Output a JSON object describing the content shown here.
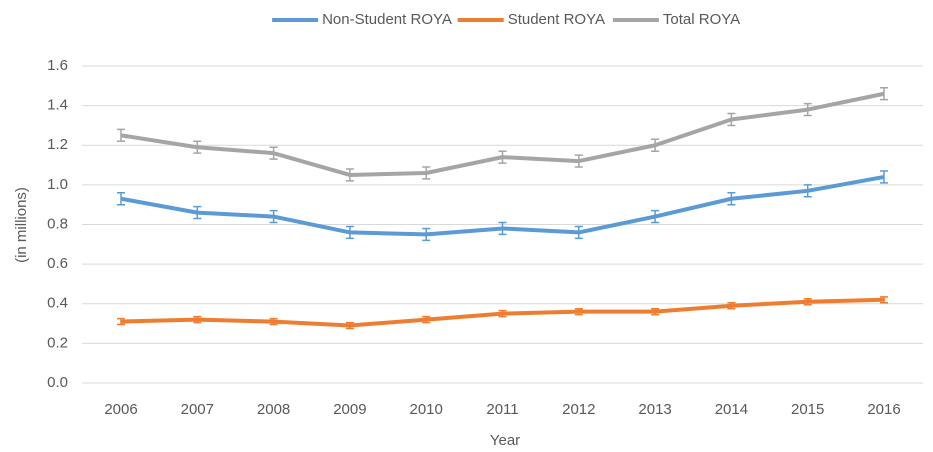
{
  "chart_data": {
    "type": "line",
    "x_label": "Year",
    "y_label": "(in millions)",
    "categories": [
      "2006",
      "2007",
      "2008",
      "2009",
      "2010",
      "2011",
      "2012",
      "2013",
      "2014",
      "2015",
      "2016"
    ],
    "series": [
      {
        "name": "Non-Student ROYA",
        "color": "#5b9bd5",
        "values": [
          0.93,
          0.86,
          0.84,
          0.76,
          0.75,
          0.78,
          0.76,
          0.84,
          0.93,
          0.97,
          1.04
        ],
        "errors": [
          0.03,
          0.03,
          0.03,
          0.03,
          0.03,
          0.03,
          0.03,
          0.03,
          0.03,
          0.03,
          0.03
        ]
      },
      {
        "name": "Student ROYA",
        "color": "#ed7d31",
        "values": [
          0.31,
          0.32,
          0.31,
          0.29,
          0.32,
          0.35,
          0.36,
          0.36,
          0.39,
          0.41,
          0.42
        ],
        "errors": [
          0.015,
          0.015,
          0.015,
          0.015,
          0.015,
          0.015,
          0.015,
          0.015,
          0.015,
          0.015,
          0.015
        ]
      },
      {
        "name": "Total ROYA",
        "color": "#a5a5a5",
        "values": [
          1.25,
          1.19,
          1.16,
          1.05,
          1.06,
          1.14,
          1.12,
          1.2,
          1.33,
          1.38,
          1.46
        ],
        "errors": [
          0.03,
          0.03,
          0.03,
          0.03,
          0.03,
          0.03,
          0.03,
          0.03,
          0.03,
          0.03,
          0.03
        ]
      }
    ],
    "ylim": [
      0,
      1.6
    ],
    "yticks": [
      {
        "value": 0,
        "label": "0.0"
      },
      0.2,
      0.4,
      0.6,
      0.8,
      {
        "value": 1,
        "label": "1.0"
      },
      1.2,
      1.4,
      1.6
    ],
    "grid": true,
    "legend": "top"
  }
}
